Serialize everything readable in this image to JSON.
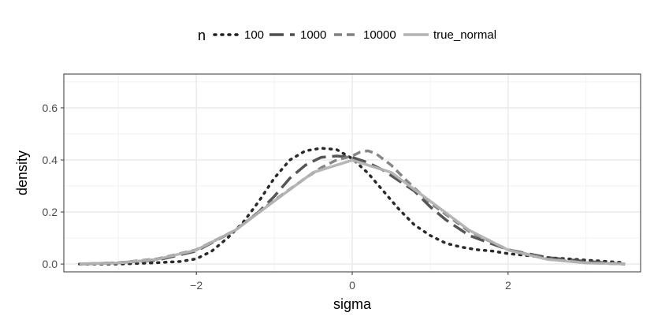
{
  "chart_data": {
    "type": "line",
    "title": "",
    "xlabel": "sigma",
    "ylabel": "density",
    "xlim": [
      -3.7,
      3.7
    ],
    "ylim": [
      -0.03,
      0.73
    ],
    "x_ticks": [
      -2,
      0,
      2
    ],
    "x_tick_labels": [
      "−2",
      "0",
      "2"
    ],
    "y_ticks": [
      0.0,
      0.2,
      0.4,
      0.6
    ],
    "y_tick_labels": [
      "0.0",
      "0.2",
      "0.4",
      "0.6"
    ],
    "grid": true,
    "legend": {
      "title": "n",
      "position": "top"
    },
    "series": [
      {
        "name": "100",
        "color": "#1f1f1f",
        "dash": "dotted",
        "x": [
          -3.5,
          -3.0,
          -2.5,
          -2.2,
          -2.0,
          -1.8,
          -1.6,
          -1.4,
          -1.2,
          -1.0,
          -0.8,
          -0.6,
          -0.4,
          -0.2,
          0.0,
          0.2,
          0.4,
          0.6,
          0.8,
          1.0,
          1.2,
          1.4,
          1.6,
          1.8,
          2.0,
          2.5,
          3.0,
          3.5
        ],
        "y": [
          0.0,
          0.0,
          0.005,
          0.01,
          0.02,
          0.05,
          0.1,
          0.16,
          0.24,
          0.33,
          0.4,
          0.435,
          0.445,
          0.44,
          0.405,
          0.35,
          0.28,
          0.21,
          0.15,
          0.11,
          0.08,
          0.065,
          0.055,
          0.05,
          0.04,
          0.025,
          0.015,
          0.005
        ]
      },
      {
        "name": "1000",
        "color": "#4d4d4d",
        "dash": "longdash",
        "x": [
          -3.5,
          -3.0,
          -2.5,
          -2.0,
          -1.5,
          -1.2,
          -1.0,
          -0.8,
          -0.6,
          -0.4,
          -0.2,
          0.0,
          0.2,
          0.4,
          0.6,
          0.8,
          1.0,
          1.2,
          1.5,
          2.0,
          2.5,
          3.0,
          3.5
        ],
        "y": [
          0.0,
          0.005,
          0.015,
          0.05,
          0.13,
          0.2,
          0.26,
          0.33,
          0.38,
          0.41,
          0.415,
          0.41,
          0.39,
          0.36,
          0.32,
          0.28,
          0.22,
          0.17,
          0.11,
          0.055,
          0.025,
          0.01,
          0.0
        ]
      },
      {
        "name": "10000",
        "color": "#808080",
        "dash": "dashed",
        "x": [
          -3.5,
          -3.0,
          -2.5,
          -2.0,
          -1.5,
          -1.0,
          -0.6,
          -0.4,
          -0.2,
          0.0,
          0.1,
          0.2,
          0.3,
          0.5,
          0.7,
          1.0,
          1.5,
          2.0,
          2.5,
          3.0,
          3.5
        ],
        "y": [
          0.0,
          0.005,
          0.02,
          0.055,
          0.13,
          0.245,
          0.33,
          0.37,
          0.4,
          0.415,
          0.43,
          0.435,
          0.425,
          0.38,
          0.32,
          0.235,
          0.125,
          0.055,
          0.02,
          0.005,
          0.0
        ]
      },
      {
        "name": "true_normal",
        "color": "#b3b3b3",
        "dash": "solid",
        "x": [
          -3.5,
          -3.0,
          -2.5,
          -2.0,
          -1.5,
          -1.0,
          -0.5,
          0.0,
          0.5,
          1.0,
          1.5,
          2.0,
          2.5,
          3.0,
          3.5
        ],
        "y": [
          0.001,
          0.004,
          0.018,
          0.054,
          0.13,
          0.242,
          0.352,
          0.399,
          0.352,
          0.242,
          0.13,
          0.054,
          0.018,
          0.004,
          0.001
        ]
      }
    ]
  }
}
